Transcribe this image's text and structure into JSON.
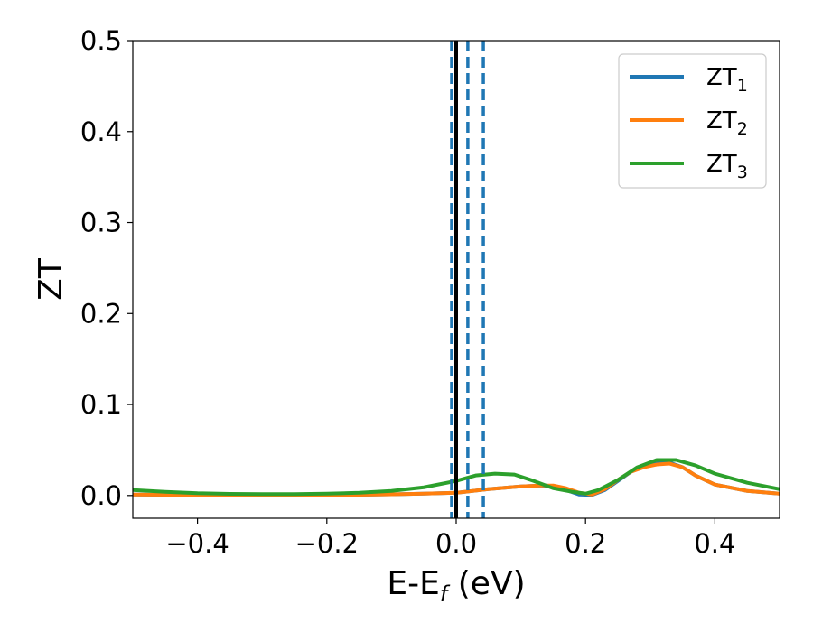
{
  "chart_data": {
    "type": "line",
    "xlabel": "E-E",
    "xlabel_sub": "f",
    "xlabel_unit": " (eV)",
    "ylabel": "ZT",
    "xlim": [
      -0.5,
      0.5
    ],
    "ylim": [
      -0.025,
      0.5
    ],
    "xticks": [
      -0.4,
      -0.2,
      0.0,
      0.2,
      0.4
    ],
    "xtick_labels": [
      "−0.4",
      "−0.2",
      "0.0",
      "0.2",
      "0.4"
    ],
    "yticks": [
      0.0,
      0.1,
      0.2,
      0.3,
      0.4,
      0.5
    ],
    "ytick_labels": [
      "0.0",
      "0.1",
      "0.2",
      "0.3",
      "0.4",
      "0.5"
    ],
    "grid": false,
    "legend_position": "top-right",
    "vlines": [
      {
        "x": 0.0,
        "style": "solid",
        "color": "#000000"
      },
      {
        "x": -0.007,
        "style": "dashed",
        "color": "#1f77b4"
      },
      {
        "x": 0.018,
        "style": "dashed",
        "color": "#1f77b4"
      },
      {
        "x": 0.042,
        "style": "dashed",
        "color": "#1f77b4"
      }
    ],
    "series": [
      {
        "name": "ZT",
        "sub": "1",
        "color": "#1f77b4",
        "x": [
          -0.5,
          -0.45,
          -0.4,
          -0.35,
          -0.3,
          -0.25,
          -0.2,
          -0.15,
          -0.1,
          -0.05,
          0.0,
          0.05,
          0.1,
          0.13,
          0.15,
          0.17,
          0.19,
          0.21,
          0.23,
          0.25,
          0.27,
          0.29,
          0.31,
          0.33,
          0.35,
          0.37,
          0.4,
          0.45,
          0.5
        ],
        "y": [
          0.001,
          0.0008,
          0.0006,
          0.0005,
          0.0005,
          0.0005,
          0.0006,
          0.0008,
          0.0013,
          0.002,
          0.003,
          0.007,
          0.01,
          0.011,
          0.01,
          0.006,
          0.001,
          0.0005,
          0.006,
          0.016,
          0.026,
          0.032,
          0.035,
          0.036,
          0.031,
          0.022,
          0.012,
          0.005,
          0.002
        ]
      },
      {
        "name": "ZT",
        "sub": "2",
        "color": "#ff7f0e",
        "x": [
          -0.5,
          -0.45,
          -0.4,
          -0.35,
          -0.3,
          -0.25,
          -0.2,
          -0.15,
          -0.1,
          -0.05,
          0.0,
          0.05,
          0.1,
          0.13,
          0.15,
          0.17,
          0.19,
          0.21,
          0.23,
          0.25,
          0.27,
          0.29,
          0.31,
          0.33,
          0.35,
          0.37,
          0.4,
          0.45,
          0.5
        ],
        "y": [
          0.001,
          0.0008,
          0.0006,
          0.0005,
          0.0005,
          0.0005,
          0.0006,
          0.0008,
          0.0013,
          0.002,
          0.003,
          0.007,
          0.01,
          0.011,
          0.011,
          0.008,
          0.003,
          0.001,
          0.007,
          0.017,
          0.026,
          0.031,
          0.034,
          0.035,
          0.031,
          0.022,
          0.012,
          0.005,
          0.002
        ]
      },
      {
        "name": "ZT",
        "sub": "3",
        "color": "#2ca02c",
        "x": [
          -0.5,
          -0.45,
          -0.4,
          -0.35,
          -0.3,
          -0.25,
          -0.2,
          -0.15,
          -0.1,
          -0.05,
          0.0,
          0.03,
          0.06,
          0.09,
          0.12,
          0.15,
          0.18,
          0.2,
          0.22,
          0.25,
          0.28,
          0.31,
          0.34,
          0.37,
          0.4,
          0.45,
          0.5
        ],
        "y": [
          0.006,
          0.004,
          0.0025,
          0.0018,
          0.0015,
          0.0015,
          0.002,
          0.003,
          0.005,
          0.009,
          0.016,
          0.022,
          0.024,
          0.023,
          0.016,
          0.008,
          0.004,
          0.002,
          0.006,
          0.017,
          0.031,
          0.039,
          0.039,
          0.033,
          0.024,
          0.014,
          0.007
        ]
      }
    ]
  }
}
